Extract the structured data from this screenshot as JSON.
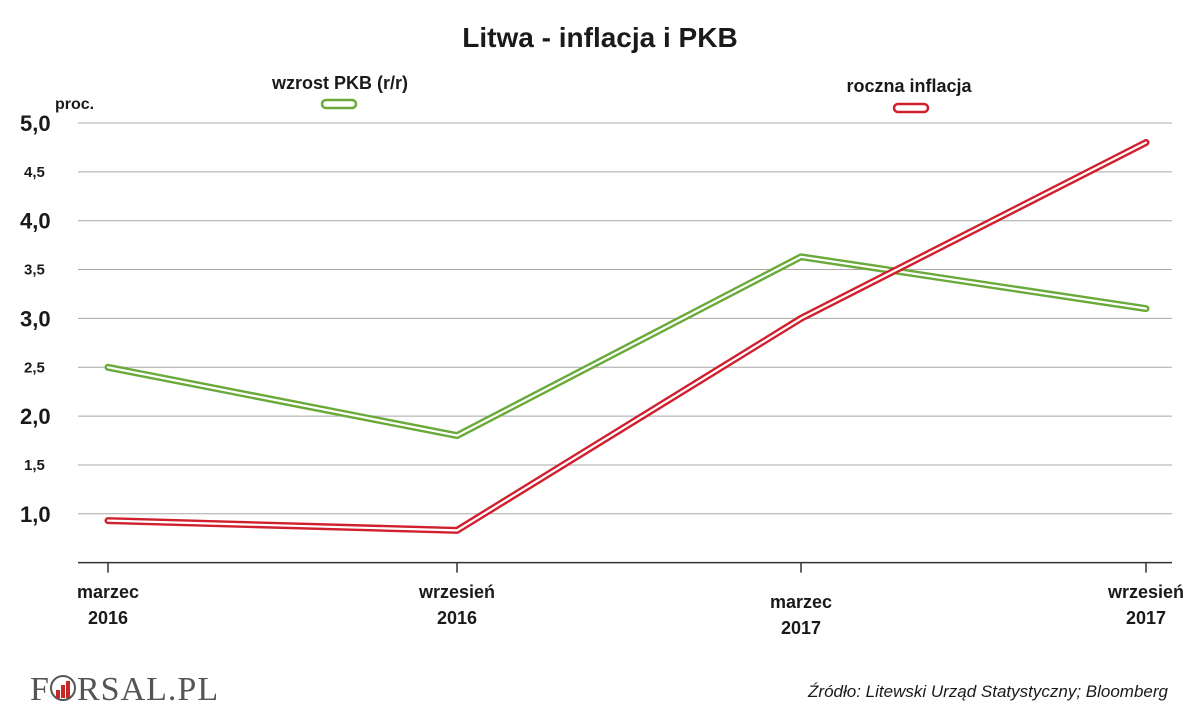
{
  "chart_data": {
    "type": "line",
    "title": "Litwa - inflacja i PKB",
    "ylabel": "proc.",
    "ylim": [
      0.5,
      5.0
    ],
    "yticks": [
      "5,0",
      "4,5",
      "4,0",
      "3,5",
      "3,0",
      "2,5",
      "2,0",
      "1,5",
      "1,0"
    ],
    "categories": [
      {
        "line1": "marzec",
        "line2": "2016"
      },
      {
        "line1": "wrzesień",
        "line2": "2016"
      },
      {
        "line1": "marzec",
        "line2": "2017"
      },
      {
        "line1": "wrzesień",
        "line2": "2017"
      }
    ],
    "series": [
      {
        "name": "wzrost PKB (r/r)",
        "color": "#6aaa3a",
        "values": [
          2.5,
          1.8,
          3.63,
          3.1
        ]
      },
      {
        "name": "roczna inflacja",
        "color": "#d0202e",
        "values": [
          0.93,
          0.83,
          3.0,
          4.8
        ]
      }
    ],
    "grid": true,
    "legend": "top"
  },
  "source": "Źródło:  Litewski Urząd Statystyczny; Bloomberg",
  "logo": {
    "text": "FORSAL.PL",
    "accent_color": "#c62828"
  }
}
